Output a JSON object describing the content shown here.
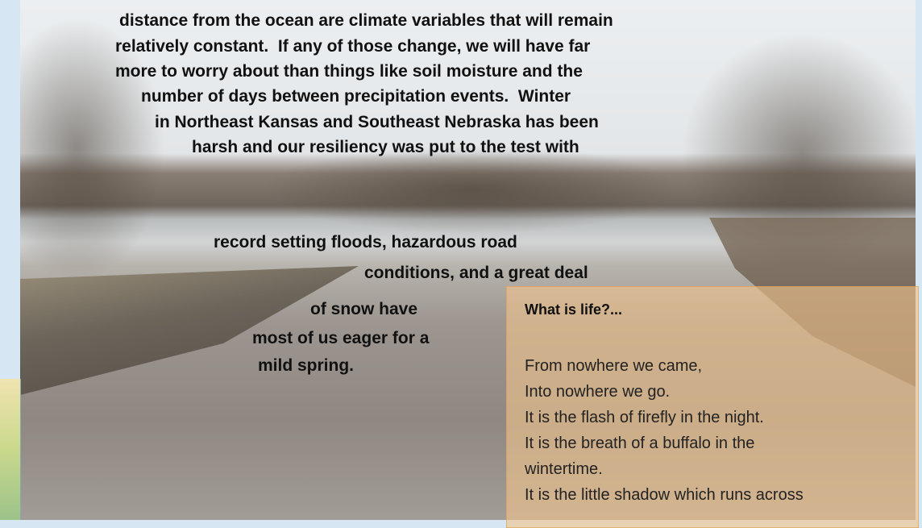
{
  "article": {
    "lines": [
      "distance from the ocean are climate variables that will remain",
      "relatively constant.  If any of those change, we will have far",
      "more to worry about than things like soil moisture and the",
      "number of days between precipitation events.  Winter",
      "in Northeast Kansas and Southeast Nebraska has been",
      "harsh and our resiliency was put to the test with",
      "record setting floods, hazardous road",
      "conditions, and a great deal",
      "of snow have",
      "most of us eager for a",
      "mild spring."
    ]
  },
  "poem": {
    "title": "What is life?...",
    "lines": [
      "From nowhere we came,",
      "Into nowhere we go.",
      "It is the flash of firefly in the night.",
      "It is the breath of a buffalo in the",
      "wintertime.",
      "It is the little shadow which runs across"
    ]
  }
}
